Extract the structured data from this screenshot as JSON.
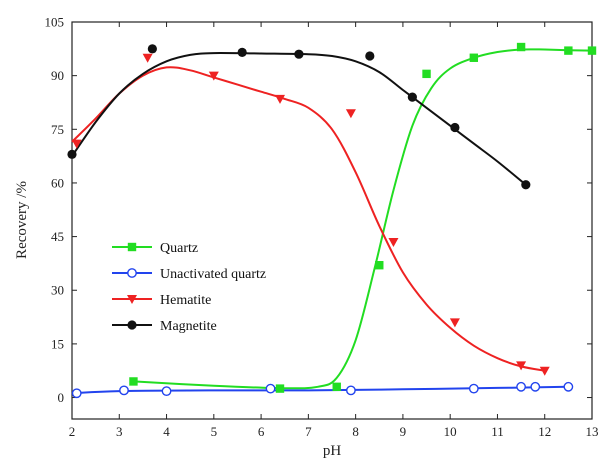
{
  "chart_data": {
    "type": "line",
    "xlabel": "pH",
    "ylabel": "Recovery /%",
    "xlim": [
      2,
      13
    ],
    "ylim": [
      -6,
      105
    ],
    "xticks": [
      2,
      3,
      4,
      5,
      6,
      7,
      8,
      9,
      10,
      11,
      12,
      13
    ],
    "yticks": [
      0,
      15,
      30,
      45,
      60,
      75,
      90,
      105
    ],
    "grid": false,
    "legend_position": "lower-left",
    "series": [
      {
        "name": "Quartz",
        "color": "#22dd22",
        "marker": "square",
        "points": [
          [
            3.3,
            4.5
          ],
          [
            6.4,
            2.5
          ],
          [
            7.6,
            3
          ],
          [
            8.5,
            37
          ],
          [
            9.5,
            90.5
          ],
          [
            10.5,
            95
          ],
          [
            11.5,
            98
          ],
          [
            12.5,
            97
          ],
          [
            13,
            97
          ]
        ],
        "fit": [
          [
            3.3,
            4.5
          ],
          [
            5,
            3.3
          ],
          [
            6.5,
            2.6
          ],
          [
            7.2,
            3
          ],
          [
            7.6,
            5.5
          ],
          [
            8.0,
            16
          ],
          [
            8.4,
            36
          ],
          [
            8.8,
            58
          ],
          [
            9.2,
            76
          ],
          [
            9.6,
            86.5
          ],
          [
            10.0,
            92
          ],
          [
            10.5,
            95
          ],
          [
            11.0,
            96.6
          ],
          [
            11.5,
            97.3
          ],
          [
            12.0,
            97.3
          ],
          [
            12.5,
            97.1
          ],
          [
            13.0,
            97
          ]
        ]
      },
      {
        "name": "Unactivated quartz",
        "color": "#2244ee",
        "marker": "open-circle",
        "points": [
          [
            2.1,
            1.2
          ],
          [
            3.1,
            2
          ],
          [
            4.0,
            1.8
          ],
          [
            6.2,
            2.5
          ],
          [
            7.9,
            2
          ],
          [
            10.5,
            2.5
          ],
          [
            11.5,
            3
          ],
          [
            11.8,
            3
          ],
          [
            12.5,
            3
          ]
        ],
        "fit": [
          [
            2.0,
            1.2
          ],
          [
            3.0,
            1.8
          ],
          [
            5.0,
            2.0
          ],
          [
            7.0,
            2.0
          ],
          [
            9.0,
            2.3
          ],
          [
            11.0,
            2.7
          ],
          [
            12.5,
            3.0
          ]
        ]
      },
      {
        "name": "Hematite",
        "color": "#ee2222",
        "marker": "down-triangle",
        "points": [
          [
            2.1,
            71
          ],
          [
            3.6,
            95
          ],
          [
            5.0,
            90
          ],
          [
            6.4,
            83.5
          ],
          [
            7.9,
            79.5
          ],
          [
            8.8,
            43.5
          ],
          [
            10.1,
            21
          ],
          [
            11.5,
            9
          ],
          [
            12.0,
            7.5
          ]
        ],
        "fit": [
          [
            2.0,
            71.5
          ],
          [
            2.5,
            78
          ],
          [
            3.0,
            85
          ],
          [
            3.5,
            90
          ],
          [
            4.0,
            92.3
          ],
          [
            4.5,
            91.5
          ],
          [
            5.0,
            89.5
          ],
          [
            5.5,
            87.5
          ],
          [
            6.0,
            85.5
          ],
          [
            6.5,
            83.5
          ],
          [
            7.0,
            81
          ],
          [
            7.5,
            75
          ],
          [
            8.0,
            63
          ],
          [
            8.5,
            48
          ],
          [
            9.0,
            35
          ],
          [
            9.5,
            26
          ],
          [
            10.0,
            19.5
          ],
          [
            10.5,
            14.5
          ],
          [
            11.0,
            11
          ],
          [
            11.5,
            8.7
          ],
          [
            12.0,
            7.5
          ]
        ]
      },
      {
        "name": "Magnetite",
        "color": "#111111",
        "marker": "circle",
        "points": [
          [
            2.0,
            68
          ],
          [
            3.7,
            97.5
          ],
          [
            5.6,
            96.5
          ],
          [
            6.8,
            96
          ],
          [
            8.3,
            95.5
          ],
          [
            9.2,
            84
          ],
          [
            10.1,
            75.5
          ],
          [
            11.6,
            59.5
          ]
        ],
        "fit": [
          [
            2.0,
            67.5
          ],
          [
            2.5,
            77
          ],
          [
            3.0,
            85
          ],
          [
            3.5,
            90.5
          ],
          [
            4.0,
            94
          ],
          [
            4.5,
            95.8
          ],
          [
            5.0,
            96.3
          ],
          [
            6.0,
            96.2
          ],
          [
            7.0,
            96
          ],
          [
            7.5,
            95.5
          ],
          [
            8.0,
            94
          ],
          [
            8.5,
            91
          ],
          [
            9.0,
            86
          ],
          [
            9.5,
            81
          ],
          [
            10.0,
            76
          ],
          [
            10.5,
            71
          ],
          [
            11.0,
            66
          ],
          [
            11.6,
            59.5
          ]
        ]
      }
    ]
  }
}
